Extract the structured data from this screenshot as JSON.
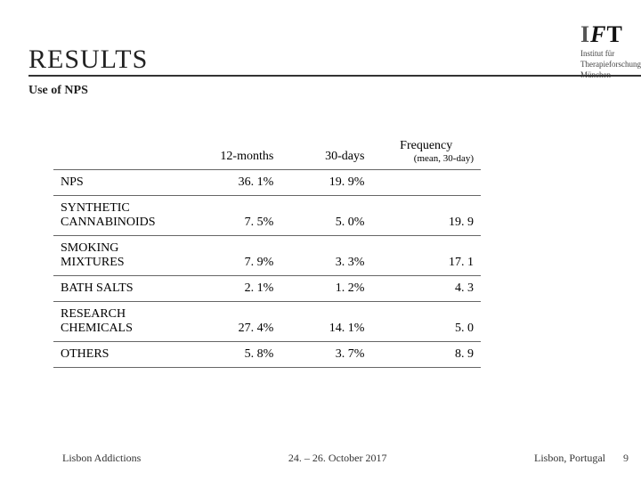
{
  "header": {
    "title": "RESULTS",
    "logo": {
      "i": "I",
      "f": "F",
      "t": "T"
    },
    "institute_line1": "Institut für",
    "institute_line2": "Therapieforschung",
    "institute_line3": "München"
  },
  "subtitle": "Use of NPS",
  "table": {
    "columns": {
      "c1": "",
      "c2": "12-months",
      "c3": "30-days",
      "freq_top": "Frequency",
      "freq_sub": "(mean, 30-day)"
    },
    "rows": [
      {
        "label": "NPS",
        "c2": "36. 1%",
        "c3": "19. 9%",
        "c4": ""
      },
      {
        "label": "SYNTHETIC CANNABINOIDS",
        "c2": "7. 5%",
        "c3": "5. 0%",
        "c4": "19. 9"
      },
      {
        "label": "SMOKING MIXTURES",
        "c2": "7. 9%",
        "c3": "3. 3%",
        "c4": "17. 1"
      },
      {
        "label": "BATH SALTS",
        "c2": "2. 1%",
        "c3": "1. 2%",
        "c4": "4. 3"
      },
      {
        "label": "RESEARCH CHEMICALS",
        "c2": "27. 4%",
        "c3": "14. 1%",
        "c4": "5. 0"
      },
      {
        "label": "OTHERS",
        "c2": "5. 8%",
        "c3": "3. 7%",
        "c4": "8. 9"
      }
    ]
  },
  "footer": {
    "left": "Lisbon Addictions",
    "center": "24. – 26. October 2017",
    "right": "Lisbon, Portugal",
    "page": "9"
  }
}
